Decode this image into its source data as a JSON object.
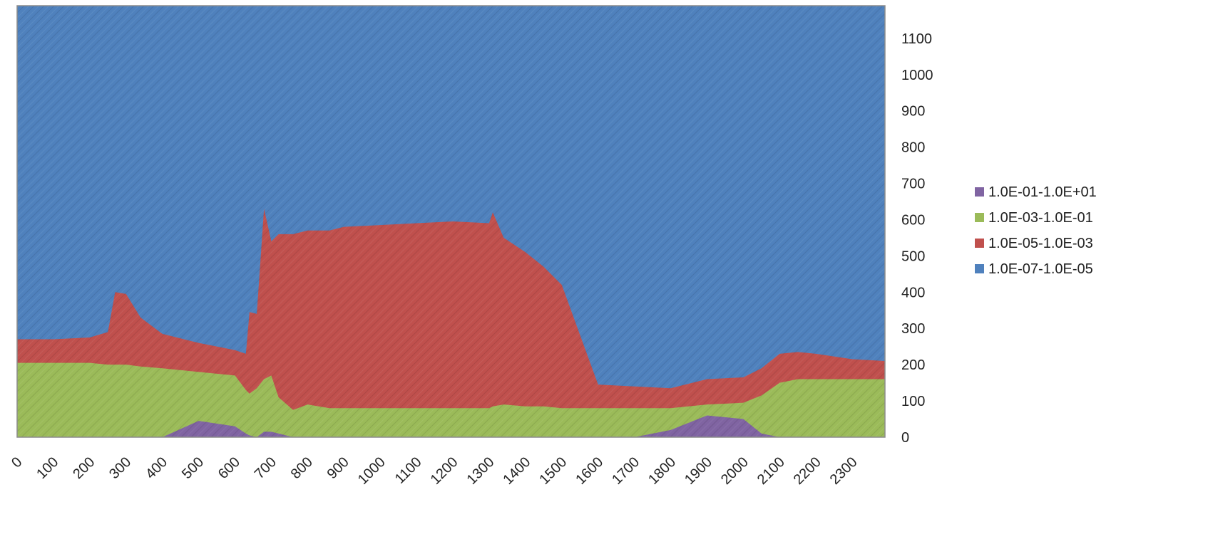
{
  "chart_data": {
    "type": "area",
    "title": "",
    "xlabel": "",
    "ylabel": "",
    "x_ticks": [
      "0",
      "100",
      "200",
      "300",
      "400",
      "500",
      "600",
      "700",
      "800",
      "900",
      "1000",
      "1100",
      "1200",
      "1300",
      "1400",
      "1500",
      "1600",
      "1700",
      "1800",
      "1900",
      "2000",
      "2100",
      "2200",
      "2300"
    ],
    "y_ticks": [
      "0",
      "100",
      "200",
      "300",
      "400",
      "500",
      "600",
      "700",
      "800",
      "900",
      "1000",
      "1100"
    ],
    "xlim": [
      0,
      2390
    ],
    "ylim": [
      0,
      1190
    ],
    "y_axis_side": "right",
    "grid": false,
    "legend_position": "right",
    "x": [
      0,
      100,
      200,
      250,
      270,
      300,
      340,
      400,
      500,
      600,
      630,
      640,
      660,
      680,
      700,
      720,
      760,
      800,
      860,
      900,
      1000,
      1100,
      1200,
      1300,
      1310,
      1340,
      1400,
      1450,
      1500,
      1600,
      1700,
      1800,
      1900,
      2000,
      2050,
      2100,
      2150,
      2200,
      2300,
      2390
    ],
    "series": [
      {
        "name": "1.0E-01-1.0E+01",
        "color": "#8064a2",
        "upper": [
          0,
          0,
          0,
          0,
          0,
          0,
          0,
          0,
          45,
          30,
          10,
          5,
          0,
          15,
          15,
          10,
          0,
          0,
          0,
          0,
          0,
          0,
          0,
          0,
          0,
          0,
          0,
          0,
          0,
          0,
          0,
          20,
          60,
          50,
          10,
          0,
          0,
          0,
          0,
          0
        ]
      },
      {
        "name": "1.0E-03-1.0E-01",
        "color": "#9bbb59",
        "upper": [
          205,
          205,
          205,
          200,
          200,
          200,
          195,
          190,
          180,
          170,
          130,
          120,
          135,
          160,
          170,
          110,
          75,
          90,
          80,
          80,
          80,
          80,
          80,
          80,
          85,
          90,
          85,
          85,
          80,
          80,
          80,
          80,
          90,
          95,
          115,
          150,
          160,
          160,
          160,
          160
        ]
      },
      {
        "name": "1.0E-05-1.0E-03",
        "color": "#c0504d",
        "upper": [
          270,
          270,
          275,
          290,
          400,
          395,
          330,
          285,
          260,
          240,
          230,
          345,
          340,
          630,
          540,
          560,
          560,
          570,
          570,
          580,
          585,
          590,
          595,
          590,
          620,
          550,
          510,
          470,
          420,
          145,
          140,
          135,
          160,
          165,
          190,
          230,
          235,
          230,
          215,
          210
        ]
      },
      {
        "name": "1.0E-07-1.0E-05",
        "color": "#4f81bd",
        "upper": [
          1190,
          1190,
          1190,
          1190,
          1190,
          1190,
          1190,
          1190,
          1190,
          1190,
          1190,
          1190,
          1190,
          1190,
          1190,
          1190,
          1190,
          1190,
          1190,
          1190,
          1190,
          1190,
          1190,
          1190,
          1190,
          1190,
          1190,
          1190,
          1190,
          1190,
          1190,
          1190,
          1190,
          1190,
          1190,
          1190,
          1190,
          1190,
          1190,
          1190
        ]
      }
    ],
    "legend_order": [
      "1.0E-01-1.0E+01",
      "1.0E-03-1.0E-01",
      "1.0E-05-1.0E-03",
      "1.0E-07-1.0E-05"
    ]
  }
}
